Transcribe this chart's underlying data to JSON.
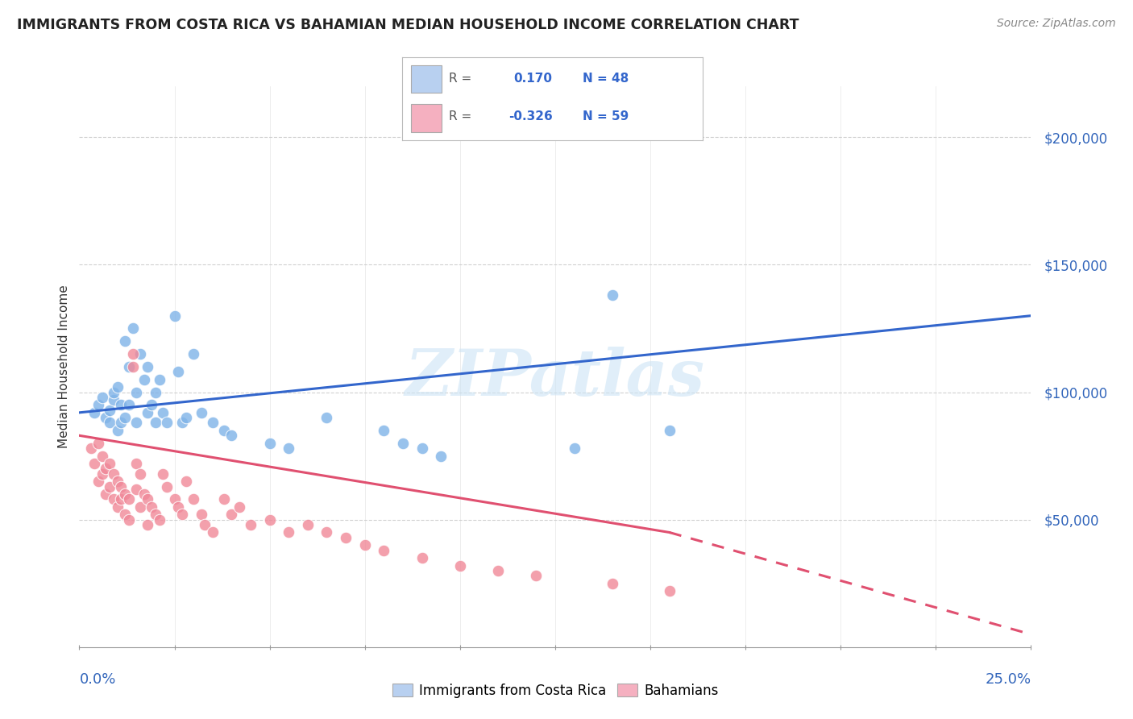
{
  "title": "IMMIGRANTS FROM COSTA RICA VS BAHAMIAN MEDIAN HOUSEHOLD INCOME CORRELATION CHART",
  "source": "Source: ZipAtlas.com",
  "ylabel": "Median Household Income",
  "ytick_labels": [
    "$50,000",
    "$100,000",
    "$150,000",
    "$200,000"
  ],
  "ytick_values": [
    50000,
    100000,
    150000,
    200000
  ],
  "series1_color": "#7fb3e8",
  "series1_line_color": "#3366cc",
  "series2_color": "#f08898",
  "series2_line_color": "#e05070",
  "legend_box_color": "#b8d0f0",
  "legend_box_color2": "#f5b0c0",
  "R1": 0.17,
  "N1": 48,
  "R2": -0.326,
  "N2": 59,
  "xlim": [
    0.0,
    0.25
  ],
  "ylim": [
    0,
    220000
  ],
  "watermark": "ZIPatlas",
  "background_color": "#ffffff",
  "grid_color": "#cccccc",
  "blue_line_y0": 92000,
  "blue_line_y1": 130000,
  "pink_line_y0": 83000,
  "pink_line_yend_solid": 45000,
  "pink_line_xend_solid": 0.155,
  "pink_line_yend_dashed": 5000,
  "costa_rica_x": [
    0.004,
    0.005,
    0.006,
    0.007,
    0.008,
    0.008,
    0.009,
    0.009,
    0.01,
    0.01,
    0.011,
    0.011,
    0.012,
    0.012,
    0.013,
    0.013,
    0.014,
    0.015,
    0.015,
    0.016,
    0.017,
    0.018,
    0.018,
    0.019,
    0.02,
    0.02,
    0.021,
    0.022,
    0.023,
    0.025,
    0.026,
    0.027,
    0.028,
    0.03,
    0.032,
    0.035,
    0.038,
    0.04,
    0.05,
    0.055,
    0.065,
    0.08,
    0.085,
    0.09,
    0.095,
    0.13,
    0.14,
    0.155
  ],
  "costa_rica_y": [
    92000,
    95000,
    98000,
    90000,
    88000,
    93000,
    97000,
    100000,
    85000,
    102000,
    95000,
    88000,
    90000,
    120000,
    110000,
    95000,
    125000,
    88000,
    100000,
    115000,
    105000,
    92000,
    110000,
    95000,
    88000,
    100000,
    105000,
    92000,
    88000,
    130000,
    108000,
    88000,
    90000,
    115000,
    92000,
    88000,
    85000,
    83000,
    80000,
    78000,
    90000,
    85000,
    80000,
    78000,
    75000,
    78000,
    138000,
    85000
  ],
  "bahamian_x": [
    0.003,
    0.004,
    0.005,
    0.005,
    0.006,
    0.006,
    0.007,
    0.007,
    0.008,
    0.008,
    0.009,
    0.009,
    0.01,
    0.01,
    0.011,
    0.011,
    0.012,
    0.012,
    0.013,
    0.013,
    0.014,
    0.014,
    0.015,
    0.015,
    0.016,
    0.016,
    0.017,
    0.018,
    0.018,
    0.019,
    0.02,
    0.021,
    0.022,
    0.023,
    0.025,
    0.026,
    0.027,
    0.028,
    0.03,
    0.032,
    0.033,
    0.035,
    0.038,
    0.04,
    0.042,
    0.045,
    0.05,
    0.055,
    0.06,
    0.065,
    0.07,
    0.075,
    0.08,
    0.09,
    0.1,
    0.11,
    0.12,
    0.14,
    0.155
  ],
  "bahamian_y": [
    78000,
    72000,
    80000,
    65000,
    75000,
    68000,
    70000,
    60000,
    72000,
    63000,
    68000,
    58000,
    65000,
    55000,
    63000,
    58000,
    60000,
    52000,
    58000,
    50000,
    115000,
    110000,
    72000,
    62000,
    68000,
    55000,
    60000,
    58000,
    48000,
    55000,
    52000,
    50000,
    68000,
    63000,
    58000,
    55000,
    52000,
    65000,
    58000,
    52000,
    48000,
    45000,
    58000,
    52000,
    55000,
    48000,
    50000,
    45000,
    48000,
    45000,
    43000,
    40000,
    38000,
    35000,
    32000,
    30000,
    28000,
    25000,
    22000
  ]
}
